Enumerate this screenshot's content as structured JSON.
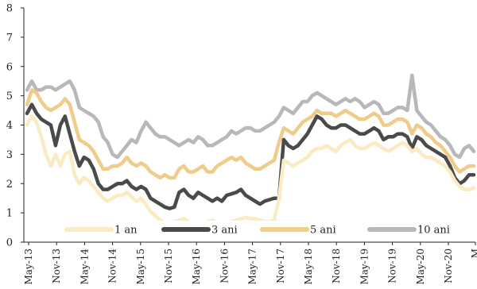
{
  "chart_data": {
    "type": "line",
    "title": "",
    "xlabel": "",
    "ylabel": "",
    "ylim": [
      0,
      8
    ],
    "yticks": [
      0,
      1,
      2,
      3,
      4,
      5,
      6,
      7,
      8
    ],
    "xtick_labels": [
      "May-13",
      "Nov-13",
      "May-14",
      "Nov-14",
      "May-15",
      "Nov-15",
      "May-16",
      "Nov-16",
      "May-17",
      "Nov-17",
      "May-18",
      "Nov-18",
      "May-19",
      "Nov-19",
      "May-20",
      "Nov-20",
      "M"
    ],
    "grid": false,
    "legend": "bottom",
    "x": [
      "May-13",
      "Jun-13",
      "Jul-13",
      "Aug-13",
      "Sep-13",
      "Oct-13",
      "Nov-13",
      "Dec-13",
      "Jan-14",
      "Feb-14",
      "Mar-14",
      "Apr-14",
      "May-14",
      "Jun-14",
      "Jul-14",
      "Aug-14",
      "Sep-14",
      "Oct-14",
      "Nov-14",
      "Dec-14",
      "Jan-15",
      "Feb-15",
      "Mar-15",
      "Apr-15",
      "May-15",
      "Jun-15",
      "Jul-15",
      "Aug-15",
      "Sep-15",
      "Oct-15",
      "Nov-15",
      "Dec-15",
      "Jan-16",
      "Feb-16",
      "Mar-16",
      "Apr-16",
      "May-16",
      "Jun-16",
      "Jul-16",
      "Aug-16",
      "Sep-16",
      "Oct-16",
      "Nov-16",
      "Dec-16",
      "Jan-17",
      "Feb-17",
      "Mar-17",
      "Apr-17",
      "May-17",
      "Jun-17",
      "Jul-17",
      "Aug-17",
      "Sep-17",
      "Oct-17",
      "Nov-17",
      "Dec-17",
      "Jan-18",
      "Feb-18",
      "Mar-18",
      "Apr-18",
      "May-18",
      "Jun-18",
      "Jul-18",
      "Aug-18",
      "Sep-18",
      "Oct-18",
      "Nov-18",
      "Dec-18",
      "Jan-19",
      "Feb-19",
      "Mar-19",
      "Apr-19",
      "May-19",
      "Jun-19",
      "Jul-19",
      "Aug-19",
      "Sep-19",
      "Oct-19",
      "Nov-19",
      "Dec-19",
      "Jan-20",
      "Feb-20",
      "Mar-20",
      "Apr-20",
      "May-20",
      "Jun-20",
      "Jul-20",
      "Aug-20",
      "Sep-20",
      "Oct-20",
      "Nov-20",
      "Dec-20",
      "Jan-21",
      "Feb-21",
      "Mar-21"
    ],
    "series": [
      {
        "name": "1 an",
        "color": "#faebc3",
        "values": [
          4.0,
          4.3,
          4.1,
          3.6,
          3.0,
          2.6,
          3.0,
          2.6,
          3.0,
          3.1,
          2.3,
          2.0,
          2.2,
          2.1,
          1.9,
          1.7,
          1.5,
          1.4,
          1.5,
          1.6,
          1.6,
          1.7,
          1.55,
          1.4,
          1.5,
          1.3,
          1.05,
          0.9,
          0.75,
          0.65,
          0.65,
          0.7,
          0.75,
          0.8,
          0.7,
          0.55,
          0.5,
          0.55,
          0.7,
          0.75,
          0.6,
          0.55,
          0.6,
          0.7,
          0.75,
          0.8,
          0.85,
          0.8,
          0.8,
          0.75,
          0.7,
          0.7,
          0.75,
          1.5,
          2.8,
          2.7,
          2.6,
          2.7,
          2.8,
          2.9,
          3.1,
          3.2,
          3.2,
          3.3,
          3.2,
          3.1,
          3.3,
          3.4,
          3.5,
          3.3,
          3.2,
          3.2,
          3.3,
          3.4,
          3.3,
          3.2,
          3.1,
          3.2,
          3.3,
          3.4,
          3.3,
          3.1,
          3.2,
          3.0,
          2.9,
          2.9,
          2.8,
          2.7,
          2.6,
          2.4,
          2.1,
          1.9,
          1.8,
          1.8,
          1.85
        ]
      },
      {
        "name": "3 ani",
        "color": "#4a4a4a",
        "values": [
          4.4,
          4.7,
          4.4,
          4.2,
          4.1,
          4.0,
          3.3,
          4.0,
          4.3,
          3.7,
          3.1,
          2.6,
          2.9,
          2.8,
          2.5,
          2.0,
          1.8,
          1.8,
          1.9,
          2.0,
          2.0,
          2.1,
          1.9,
          1.8,
          1.9,
          1.8,
          1.5,
          1.4,
          1.3,
          1.2,
          1.15,
          1.2,
          1.7,
          1.8,
          1.6,
          1.5,
          1.7,
          1.6,
          1.5,
          1.4,
          1.5,
          1.4,
          1.6,
          1.65,
          1.7,
          1.8,
          1.6,
          1.5,
          1.4,
          1.3,
          1.4,
          1.45,
          1.5,
          1.5,
          3.5,
          3.3,
          3.2,
          3.3,
          3.5,
          3.7,
          4.0,
          4.3,
          4.2,
          4.0,
          3.9,
          3.9,
          4.0,
          4.0,
          3.9,
          3.8,
          3.7,
          3.7,
          3.8,
          3.9,
          3.8,
          3.5,
          3.6,
          3.6,
          3.7,
          3.7,
          3.6,
          3.2,
          3.6,
          3.5,
          3.3,
          3.2,
          3.1,
          3.0,
          2.9,
          2.6,
          2.2,
          2.0,
          2.1,
          2.3,
          2.3
        ]
      },
      {
        "name": "5 ani",
        "color": "#f0cc8a",
        "values": [
          4.7,
          5.2,
          5.1,
          4.8,
          4.6,
          4.5,
          4.6,
          4.7,
          4.9,
          4.7,
          4.1,
          3.5,
          3.4,
          3.3,
          3.1,
          2.8,
          2.5,
          2.5,
          2.6,
          2.6,
          2.7,
          2.9,
          2.7,
          2.6,
          2.7,
          2.6,
          2.4,
          2.3,
          2.2,
          2.3,
          2.2,
          2.2,
          2.5,
          2.6,
          2.4,
          2.4,
          2.5,
          2.6,
          2.4,
          2.4,
          2.6,
          2.7,
          2.8,
          2.9,
          2.8,
          2.9,
          2.7,
          2.6,
          2.5,
          2.5,
          2.6,
          2.7,
          2.8,
          3.4,
          3.9,
          3.8,
          3.7,
          3.9,
          4.1,
          4.2,
          4.3,
          4.5,
          4.4,
          4.4,
          4.4,
          4.3,
          4.4,
          4.5,
          4.4,
          4.3,
          4.2,
          4.2,
          4.3,
          4.4,
          4.3,
          4.0,
          4.0,
          4.1,
          4.2,
          4.2,
          4.1,
          3.7,
          4.0,
          3.9,
          3.7,
          3.6,
          3.4,
          3.3,
          3.1,
          2.9,
          2.6,
          2.4,
          2.5,
          2.6,
          2.6
        ]
      },
      {
        "name": "10 ani",
        "color": "#b8b8b8",
        "values": [
          5.2,
          5.5,
          5.2,
          5.2,
          5.3,
          5.3,
          5.2,
          5.3,
          5.4,
          5.5,
          5.2,
          4.6,
          4.5,
          4.4,
          4.3,
          4.1,
          3.6,
          3.4,
          3.0,
          2.9,
          3.1,
          3.3,
          3.5,
          3.4,
          3.8,
          4.1,
          3.9,
          3.7,
          3.6,
          3.6,
          3.5,
          3.4,
          3.3,
          3.4,
          3.5,
          3.4,
          3.6,
          3.5,
          3.3,
          3.3,
          3.4,
          3.5,
          3.6,
          3.8,
          3.7,
          3.8,
          3.9,
          3.9,
          3.8,
          3.8,
          3.9,
          4.0,
          4.1,
          4.3,
          4.6,
          4.5,
          4.4,
          4.6,
          4.8,
          4.8,
          5.0,
          5.1,
          5.0,
          4.9,
          4.8,
          4.7,
          4.8,
          4.9,
          4.8,
          4.9,
          4.8,
          4.6,
          4.7,
          4.8,
          4.7,
          4.4,
          4.4,
          4.5,
          4.6,
          4.6,
          4.5,
          5.7,
          4.5,
          4.3,
          4.1,
          4.0,
          3.8,
          3.6,
          3.5,
          3.3,
          3.0,
          2.9,
          3.2,
          3.3,
          3.1
        ]
      }
    ]
  }
}
